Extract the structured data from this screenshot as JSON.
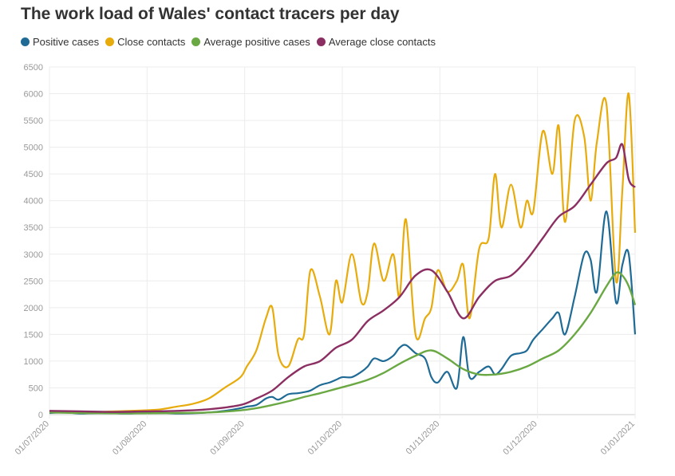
{
  "chart_data": {
    "type": "line",
    "title": "The work load of Wales' contact tracers per day",
    "xlabel": "",
    "ylabel": "",
    "ylim": [
      0,
      6500
    ],
    "y_ticks": [
      0,
      500,
      1000,
      1500,
      2000,
      2500,
      3000,
      3500,
      4000,
      4500,
      5000,
      5500,
      6000,
      6500
    ],
    "x_ticks": [
      "01/07/2020",
      "01/08/2020",
      "01/09/2020",
      "01/10/2020",
      "01/11/2020",
      "01/12/2020",
      "01/01/2021"
    ],
    "grid": true,
    "legend_position": "top-left",
    "series": [
      {
        "name": "Positive cases",
        "color": "#1f6b96",
        "x": [
          0,
          5,
          10,
          15,
          20,
          25,
          30,
          35,
          40,
          45,
          50,
          55,
          60,
          62,
          65,
          68,
          70,
          72,
          75,
          78,
          80,
          82,
          85,
          88,
          90,
          92,
          95,
          98,
          100,
          102,
          105,
          108,
          110,
          112,
          115,
          118,
          120,
          122,
          125,
          128,
          130,
          132,
          135,
          138,
          140,
          142,
          145,
          148,
          150,
          152,
          155,
          158,
          160,
          162,
          165,
          168,
          170,
          172,
          175,
          178,
          180,
          182,
          184
        ],
        "y": [
          30,
          40,
          20,
          30,
          25,
          20,
          30,
          35,
          20,
          25,
          40,
          70,
          120,
          150,
          180,
          300,
          330,
          280,
          380,
          400,
          420,
          450,
          550,
          600,
          650,
          700,
          700,
          800,
          900,
          1050,
          1000,
          1100,
          1250,
          1300,
          1150,
          1050,
          700,
          600,
          800,
          500,
          1450,
          700,
          800,
          900,
          750,
          850,
          1100,
          1150,
          1200,
          1400,
          1600,
          1800,
          1900,
          1500,
          2200,
          3000,
          2900,
          2300,
          3800,
          2100,
          2800,
          3000,
          1500
        ]
      },
      {
        "name": "Close contacts",
        "color": "#e8ab0c",
        "x": [
          0,
          5,
          10,
          15,
          20,
          25,
          30,
          35,
          40,
          45,
          50,
          55,
          60,
          62,
          65,
          68,
          70,
          72,
          75,
          78,
          80,
          82,
          85,
          88,
          90,
          92,
          95,
          98,
          100,
          102,
          105,
          108,
          110,
          112,
          115,
          118,
          120,
          122,
          125,
          128,
          130,
          132,
          135,
          138,
          140,
          142,
          145,
          148,
          150,
          152,
          155,
          158,
          160,
          162,
          165,
          168,
          170,
          172,
          175,
          178,
          180,
          182,
          184
        ],
        "y": [
          60,
          50,
          40,
          50,
          60,
          70,
          80,
          100,
          150,
          200,
          300,
          500,
          700,
          900,
          1200,
          1800,
          2000,
          1100,
          900,
          1400,
          1500,
          2700,
          2200,
          1500,
          2500,
          2100,
          3000,
          2100,
          2300,
          3200,
          2500,
          3000,
          2200,
          3650,
          1500,
          1800,
          2000,
          2700,
          2300,
          2500,
          2800,
          1800,
          3100,
          3300,
          4500,
          3500,
          4300,
          3500,
          4000,
          3800,
          5300,
          4500,
          5400,
          3600,
          5500,
          5200,
          4000,
          5100,
          5800,
          2500,
          4200,
          6000,
          3400
        ]
      },
      {
        "name": "Average positive cases",
        "color": "#6aa843",
        "x": [
          0,
          10,
          20,
          30,
          40,
          50,
          60,
          65,
          70,
          75,
          80,
          85,
          90,
          95,
          100,
          105,
          110,
          115,
          120,
          125,
          130,
          135,
          140,
          145,
          150,
          155,
          160,
          165,
          170,
          175,
          178,
          180,
          182,
          184
        ],
        "y": [
          40,
          30,
          25,
          25,
          30,
          40,
          80,
          120,
          180,
          250,
          330,
          400,
          480,
          560,
          650,
          780,
          950,
          1100,
          1200,
          1050,
          850,
          750,
          750,
          800,
          900,
          1050,
          1200,
          1500,
          1900,
          2400,
          2650,
          2600,
          2400,
          2050
        ]
      },
      {
        "name": "Average close contacts",
        "color": "#8b2f62",
        "x": [
          0,
          10,
          20,
          30,
          40,
          50,
          60,
          65,
          70,
          75,
          80,
          85,
          90,
          95,
          100,
          105,
          110,
          115,
          120,
          125,
          130,
          135,
          140,
          145,
          150,
          155,
          160,
          165,
          170,
          175,
          178,
          180,
          182,
          184
        ],
        "y": [
          70,
          60,
          50,
          60,
          70,
          100,
          180,
          300,
          450,
          700,
          900,
          1000,
          1250,
          1400,
          1750,
          1950,
          2200,
          2600,
          2700,
          2300,
          1800,
          2200,
          2500,
          2600,
          2900,
          3300,
          3700,
          3900,
          4300,
          4700,
          4800,
          5050,
          4400,
          4250
        ]
      }
    ]
  }
}
